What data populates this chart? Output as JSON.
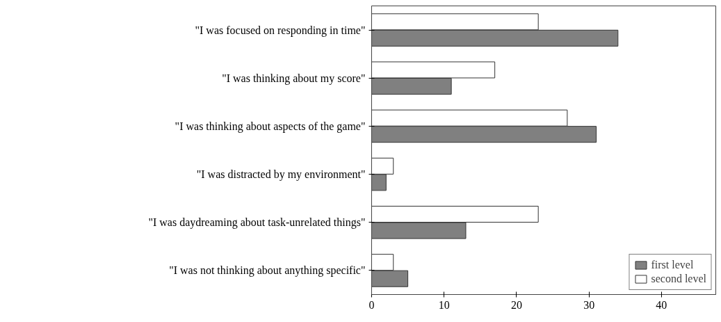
{
  "chart_data": {
    "type": "bar",
    "orientation": "horizontal",
    "categories": [
      "\"I was focused on responding in time\"",
      "\"I was thinking about my score\"",
      "\"I was thinking about aspects of the game\"",
      "\"I was distracted by my environment\"",
      "\"I was daydreaming about task-unrelated things\"",
      "\"I was not thinking about anything specific\""
    ],
    "series": [
      {
        "name": "first level",
        "color": "#808080",
        "values": [
          34,
          11,
          31,
          2,
          13,
          5
        ]
      },
      {
        "name": "second level",
        "color": "#ffffff",
        "values": [
          23,
          17,
          27,
          3,
          23,
          3
        ]
      }
    ],
    "xlim": [
      0,
      47.5
    ],
    "xticks": [
      0,
      10,
      20,
      30,
      40
    ],
    "grid": false,
    "legend": "bottom right"
  }
}
